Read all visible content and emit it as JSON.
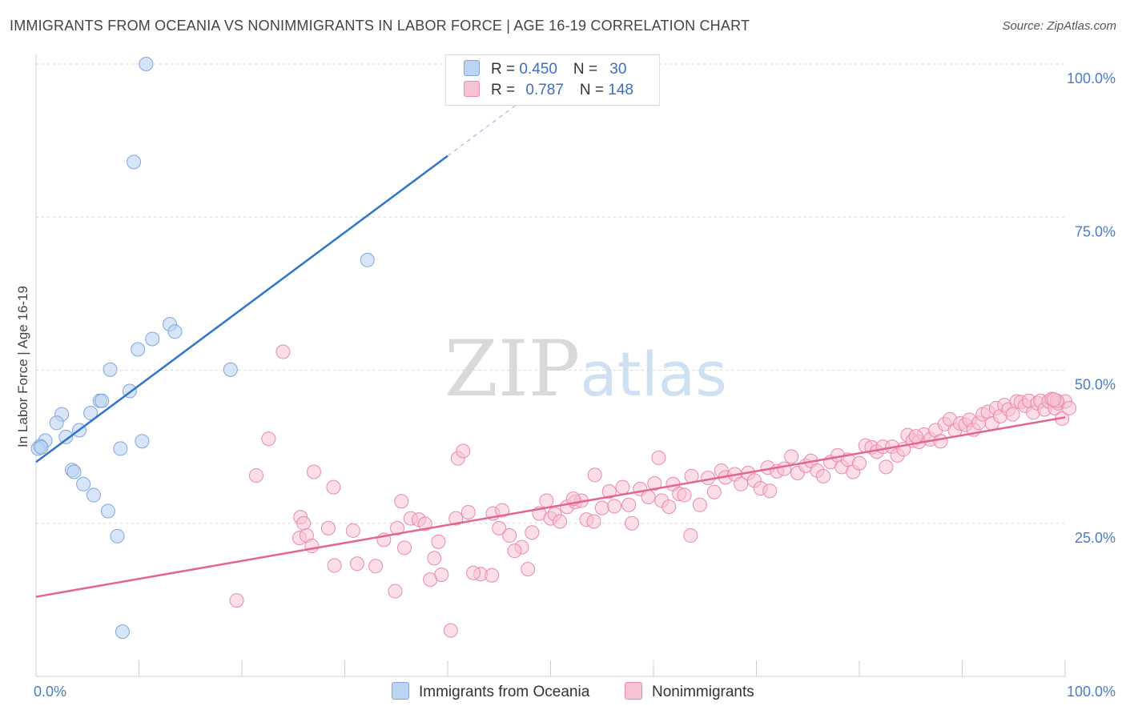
{
  "header": {
    "title": "IMMIGRANTS FROM OCEANIA VS NONIMMIGRANTS IN LABOR FORCE | AGE 16-19 CORRELATION CHART",
    "source": "Source: ZipAtlas.com"
  },
  "watermark": {
    "part1": "ZIP",
    "part2": "atlas"
  },
  "legend": {
    "series1": {
      "r_label": "R = ",
      "r_value": "0.450",
      "n_label": "N = ",
      "n_value": "30"
    },
    "series2": {
      "r_label": "R = ",
      "r_value": "0.787",
      "n_label": "N = ",
      "n_value": "148"
    }
  },
  "colors": {
    "blue_fill": "#bcd3f2",
    "blue_stroke": "#7fa6dd",
    "blue_line": "#2f74c8",
    "pink_fill": "#f7c3d3",
    "pink_stroke": "#e98aa8",
    "pink_line": "#e36591",
    "grid": "#d6d6d6"
  },
  "chart_data": {
    "type": "scatter",
    "xlabel": "",
    "ylabel": "In Labor Force | Age 16-19",
    "xlim": [
      0,
      100
    ],
    "ylim": [
      0,
      100
    ],
    "x_tick_labels": [
      "0.0%",
      "100.0%"
    ],
    "y_ticks": [
      25,
      50,
      75,
      100
    ],
    "y_tick_labels": [
      "25.0%",
      "50.0%",
      "75.0%",
      "100.0%"
    ],
    "grid": "horizontal dashed",
    "legend_placement": "top-center",
    "series": [
      {
        "name": "Immigrants from Oceania",
        "color": "#bcd3f2",
        "points": [
          [
            10.7,
            100
          ],
          [
            9.5,
            84
          ],
          [
            32.2,
            68
          ],
          [
            13.0,
            57.5
          ],
          [
            13.5,
            56.3
          ],
          [
            11.3,
            55.1
          ],
          [
            9.9,
            53.4
          ],
          [
            7.2,
            50.1
          ],
          [
            18.9,
            50.1
          ],
          [
            9.1,
            46.6
          ],
          [
            6.2,
            45.0
          ],
          [
            6.4,
            45.0
          ],
          [
            5.3,
            43.0
          ],
          [
            2.5,
            42.8
          ],
          [
            2.0,
            41.4
          ],
          [
            4.2,
            40.2
          ],
          [
            2.9,
            39.1
          ],
          [
            0.9,
            38.5
          ],
          [
            0.4,
            37.6
          ],
          [
            0.2,
            37.2
          ],
          [
            8.2,
            37.2
          ],
          [
            10.3,
            38.4
          ],
          [
            3.5,
            33.7
          ],
          [
            3.7,
            33.4
          ],
          [
            4.6,
            31.4
          ],
          [
            5.6,
            29.6
          ],
          [
            7.0,
            27.0
          ],
          [
            7.9,
            22.9
          ],
          [
            8.4,
            7.3
          ],
          [
            0.5,
            37.4
          ]
        ],
        "trend": {
          "x": [
            0,
            40
          ],
          "y": [
            35.0,
            85.0
          ],
          "dashed_to": [
            50,
            97.5
          ]
        }
      },
      {
        "name": "Nonimmigrants",
        "color": "#f7c3d3",
        "points": [
          [
            24.0,
            53.0
          ],
          [
            22.6,
            38.8
          ],
          [
            21.4,
            32.8
          ],
          [
            27.0,
            33.4
          ],
          [
            28.9,
            30.9
          ],
          [
            25.7,
            26.0
          ],
          [
            26.0,
            25.0
          ],
          [
            25.6,
            22.6
          ],
          [
            26.3,
            23.0
          ],
          [
            26.8,
            21.3
          ],
          [
            28.4,
            24.2
          ],
          [
            30.8,
            23.8
          ],
          [
            29.0,
            18.1
          ],
          [
            31.2,
            18.4
          ],
          [
            33.0,
            18.0
          ],
          [
            33.8,
            22.3
          ],
          [
            35.1,
            24.2
          ],
          [
            35.5,
            28.6
          ],
          [
            36.4,
            25.8
          ],
          [
            37.2,
            25.6
          ],
          [
            37.8,
            24.9
          ],
          [
            35.8,
            21.0
          ],
          [
            34.9,
            13.9
          ],
          [
            38.7,
            19.3
          ],
          [
            39.1,
            22.0
          ],
          [
            38.3,
            15.8
          ],
          [
            39.4,
            16.6
          ],
          [
            41.0,
            35.6
          ],
          [
            41.5,
            36.8
          ],
          [
            42.0,
            26.8
          ],
          [
            40.8,
            25.8
          ],
          [
            43.2,
            16.7
          ],
          [
            42.5,
            16.9
          ],
          [
            44.3,
            16.5
          ],
          [
            44.4,
            26.6
          ],
          [
            45.0,
            24.2
          ],
          [
            45.3,
            27.1
          ],
          [
            46.0,
            23.0
          ],
          [
            47.2,
            21.1
          ],
          [
            47.8,
            17.5
          ],
          [
            48.2,
            23.5
          ],
          [
            48.9,
            26.6
          ],
          [
            49.6,
            28.7
          ],
          [
            50.0,
            25.8
          ],
          [
            50.4,
            26.5
          ],
          [
            50.9,
            25.3
          ],
          [
            51.6,
            27.7
          ],
          [
            52.4,
            28.5
          ],
          [
            53.0,
            28.7
          ],
          [
            52.2,
            29.0
          ],
          [
            53.5,
            25.6
          ],
          [
            54.2,
            25.3
          ],
          [
            54.3,
            32.9
          ],
          [
            55.0,
            27.5
          ],
          [
            55.7,
            30.2
          ],
          [
            56.2,
            27.8
          ],
          [
            57.0,
            30.9
          ],
          [
            57.6,
            28.0
          ],
          [
            57.9,
            25.0
          ],
          [
            58.7,
            30.6
          ],
          [
            59.5,
            29.3
          ],
          [
            60.1,
            31.5
          ],
          [
            60.8,
            28.7
          ],
          [
            61.5,
            27.7
          ],
          [
            61.9,
            31.4
          ],
          [
            62.5,
            29.8
          ],
          [
            63.0,
            29.6
          ],
          [
            63.7,
            32.7
          ],
          [
            63.6,
            23.0
          ],
          [
            64.5,
            28.0
          ],
          [
            65.3,
            32.4
          ],
          [
            65.9,
            30.1
          ],
          [
            66.6,
            33.6
          ],
          [
            67.0,
            32.5
          ],
          [
            67.9,
            33.0
          ],
          [
            68.5,
            31.4
          ],
          [
            69.2,
            33.2
          ],
          [
            69.8,
            32.0
          ],
          [
            70.4,
            30.7
          ],
          [
            71.1,
            34.1
          ],
          [
            71.3,
            30.3
          ],
          [
            72.0,
            33.5
          ],
          [
            72.7,
            33.9
          ],
          [
            73.4,
            35.9
          ],
          [
            74.0,
            33.2
          ],
          [
            74.8,
            34.4
          ],
          [
            75.3,
            35.2
          ],
          [
            75.9,
            33.6
          ],
          [
            76.5,
            32.7
          ],
          [
            77.2,
            35.0
          ],
          [
            77.9,
            36.1
          ],
          [
            78.3,
            34.2
          ],
          [
            78.9,
            35.4
          ],
          [
            79.4,
            33.4
          ],
          [
            80.0,
            34.8
          ],
          [
            80.6,
            37.7
          ],
          [
            81.2,
            37.4
          ],
          [
            81.7,
            36.7
          ],
          [
            82.3,
            37.5
          ],
          [
            82.6,
            34.2
          ],
          [
            83.2,
            37.5
          ],
          [
            83.7,
            36.1
          ],
          [
            84.3,
            37.1
          ],
          [
            84.7,
            39.4
          ],
          [
            85.2,
            38.5
          ],
          [
            85.8,
            38.3
          ],
          [
            86.3,
            39.5
          ],
          [
            86.9,
            38.7
          ],
          [
            87.4,
            40.2
          ],
          [
            87.9,
            38.4
          ],
          [
            88.3,
            41.2
          ],
          [
            88.8,
            42.0
          ],
          [
            89.3,
            40.2
          ],
          [
            89.8,
            41.3
          ],
          [
            90.3,
            41.1
          ],
          [
            90.7,
            41.9
          ],
          [
            91.1,
            40.3
          ],
          [
            91.6,
            41.4
          ],
          [
            92.0,
            42.8
          ],
          [
            92.5,
            43.2
          ],
          [
            92.9,
            41.3
          ],
          [
            93.3,
            43.8
          ],
          [
            93.7,
            42.5
          ],
          [
            94.1,
            44.3
          ],
          [
            94.5,
            43.6
          ],
          [
            94.9,
            42.8
          ],
          [
            95.3,
            44.9
          ],
          [
            95.7,
            44.8
          ],
          [
            96.1,
            44.2
          ],
          [
            96.5,
            45.0
          ],
          [
            96.9,
            43.1
          ],
          [
            97.3,
            44.6
          ],
          [
            97.6,
            45.0
          ],
          [
            98.0,
            43.6
          ],
          [
            98.4,
            44.9
          ],
          [
            98.7,
            45.3
          ],
          [
            99.0,
            43.8
          ],
          [
            99.3,
            44.6
          ],
          [
            99.7,
            42.1
          ],
          [
            100.0,
            44.9
          ],
          [
            99.2,
            45.0
          ],
          [
            98.9,
            45.2
          ],
          [
            100.4,
            43.8
          ],
          [
            85.5,
            39.2
          ],
          [
            60.5,
            35.7
          ],
          [
            46.5,
            20.5
          ],
          [
            19.5,
            12.4
          ],
          [
            40.3,
            7.5
          ]
        ],
        "trend": {
          "x": [
            0,
            100
          ],
          "y": [
            13.0,
            42.3
          ]
        }
      }
    ]
  },
  "bottom_legend": [
    "Immigrants from Oceania",
    "Nonimmigrants"
  ]
}
